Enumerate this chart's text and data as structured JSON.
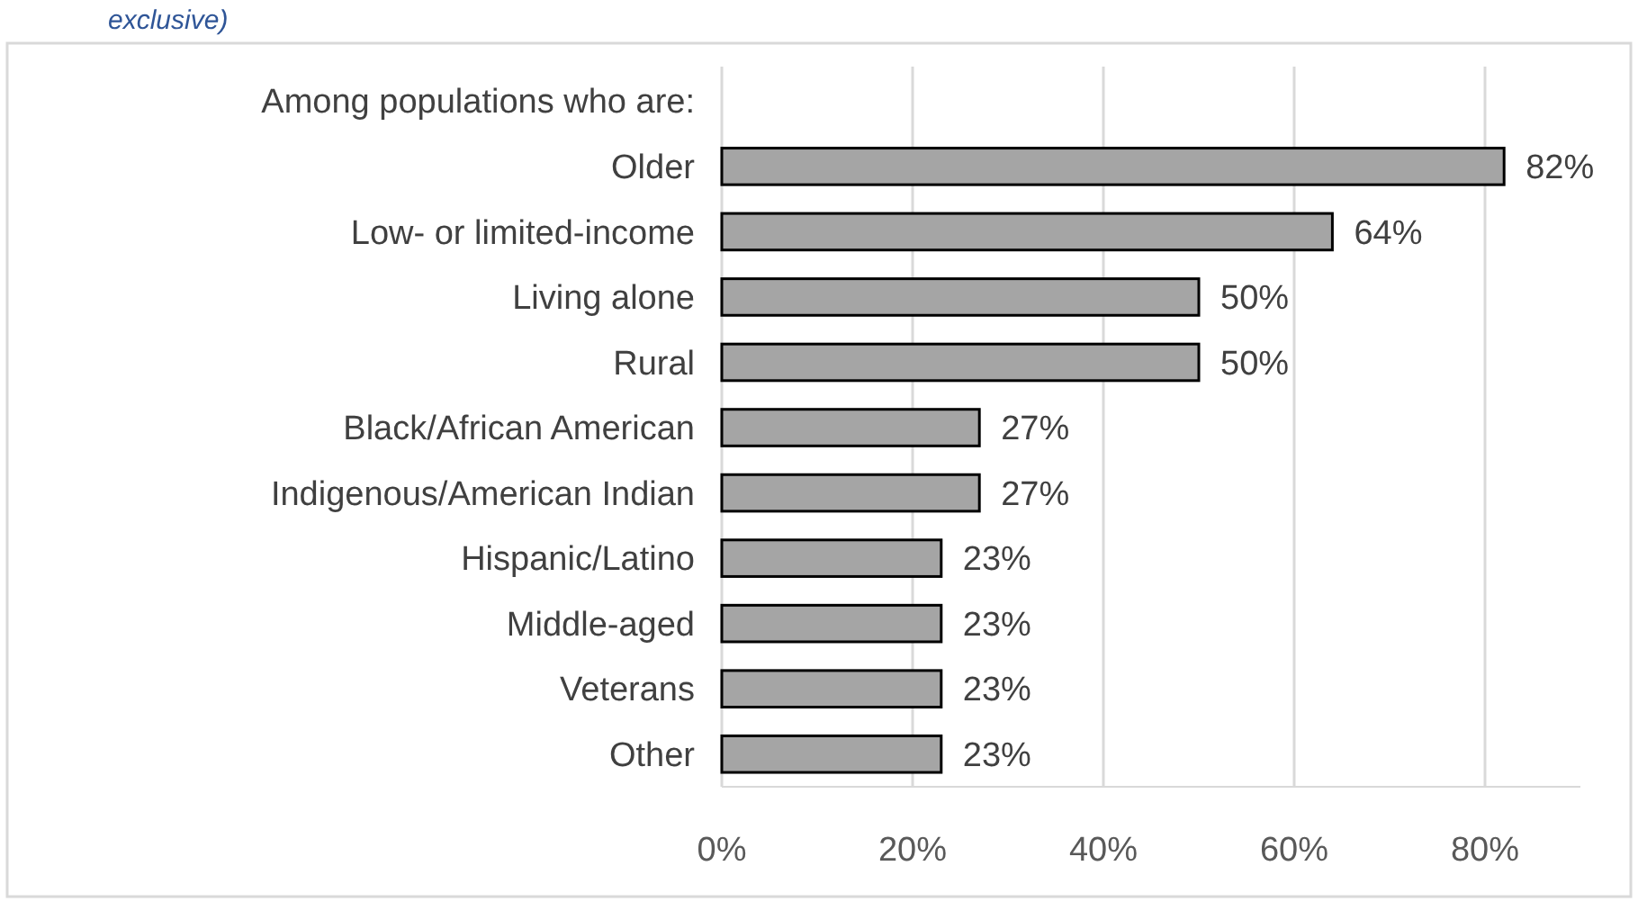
{
  "chart_data": {
    "type": "bar",
    "orientation": "horizontal",
    "subtitle": "exclusive)",
    "annotations": [
      "Among populations who are:"
    ],
    "categories": [
      "Older",
      "Low- or limited-income",
      "Living alone",
      "Rural",
      "Black/African American",
      "Indigenous/American Indian",
      "Hispanic/Latino",
      "Middle-aged",
      "Veterans",
      "Other"
    ],
    "values": [
      82,
      64,
      50,
      50,
      27,
      27,
      23,
      23,
      23,
      23
    ],
    "value_labels": [
      "82%",
      "64%",
      "50%",
      "50%",
      "27%",
      "27%",
      "23%",
      "23%",
      "23%",
      "23%"
    ],
    "color": "#a5a5a5",
    "xlim": [
      0,
      90
    ],
    "xticks": [
      {
        "value": 0,
        "label": "0%"
      },
      {
        "value": 20,
        "label": "20%"
      },
      {
        "value": 40,
        "label": "40%"
      },
      {
        "value": 60,
        "label": "60%"
      },
      {
        "value": 80,
        "label": "80%"
      }
    ],
    "grid": "x"
  }
}
